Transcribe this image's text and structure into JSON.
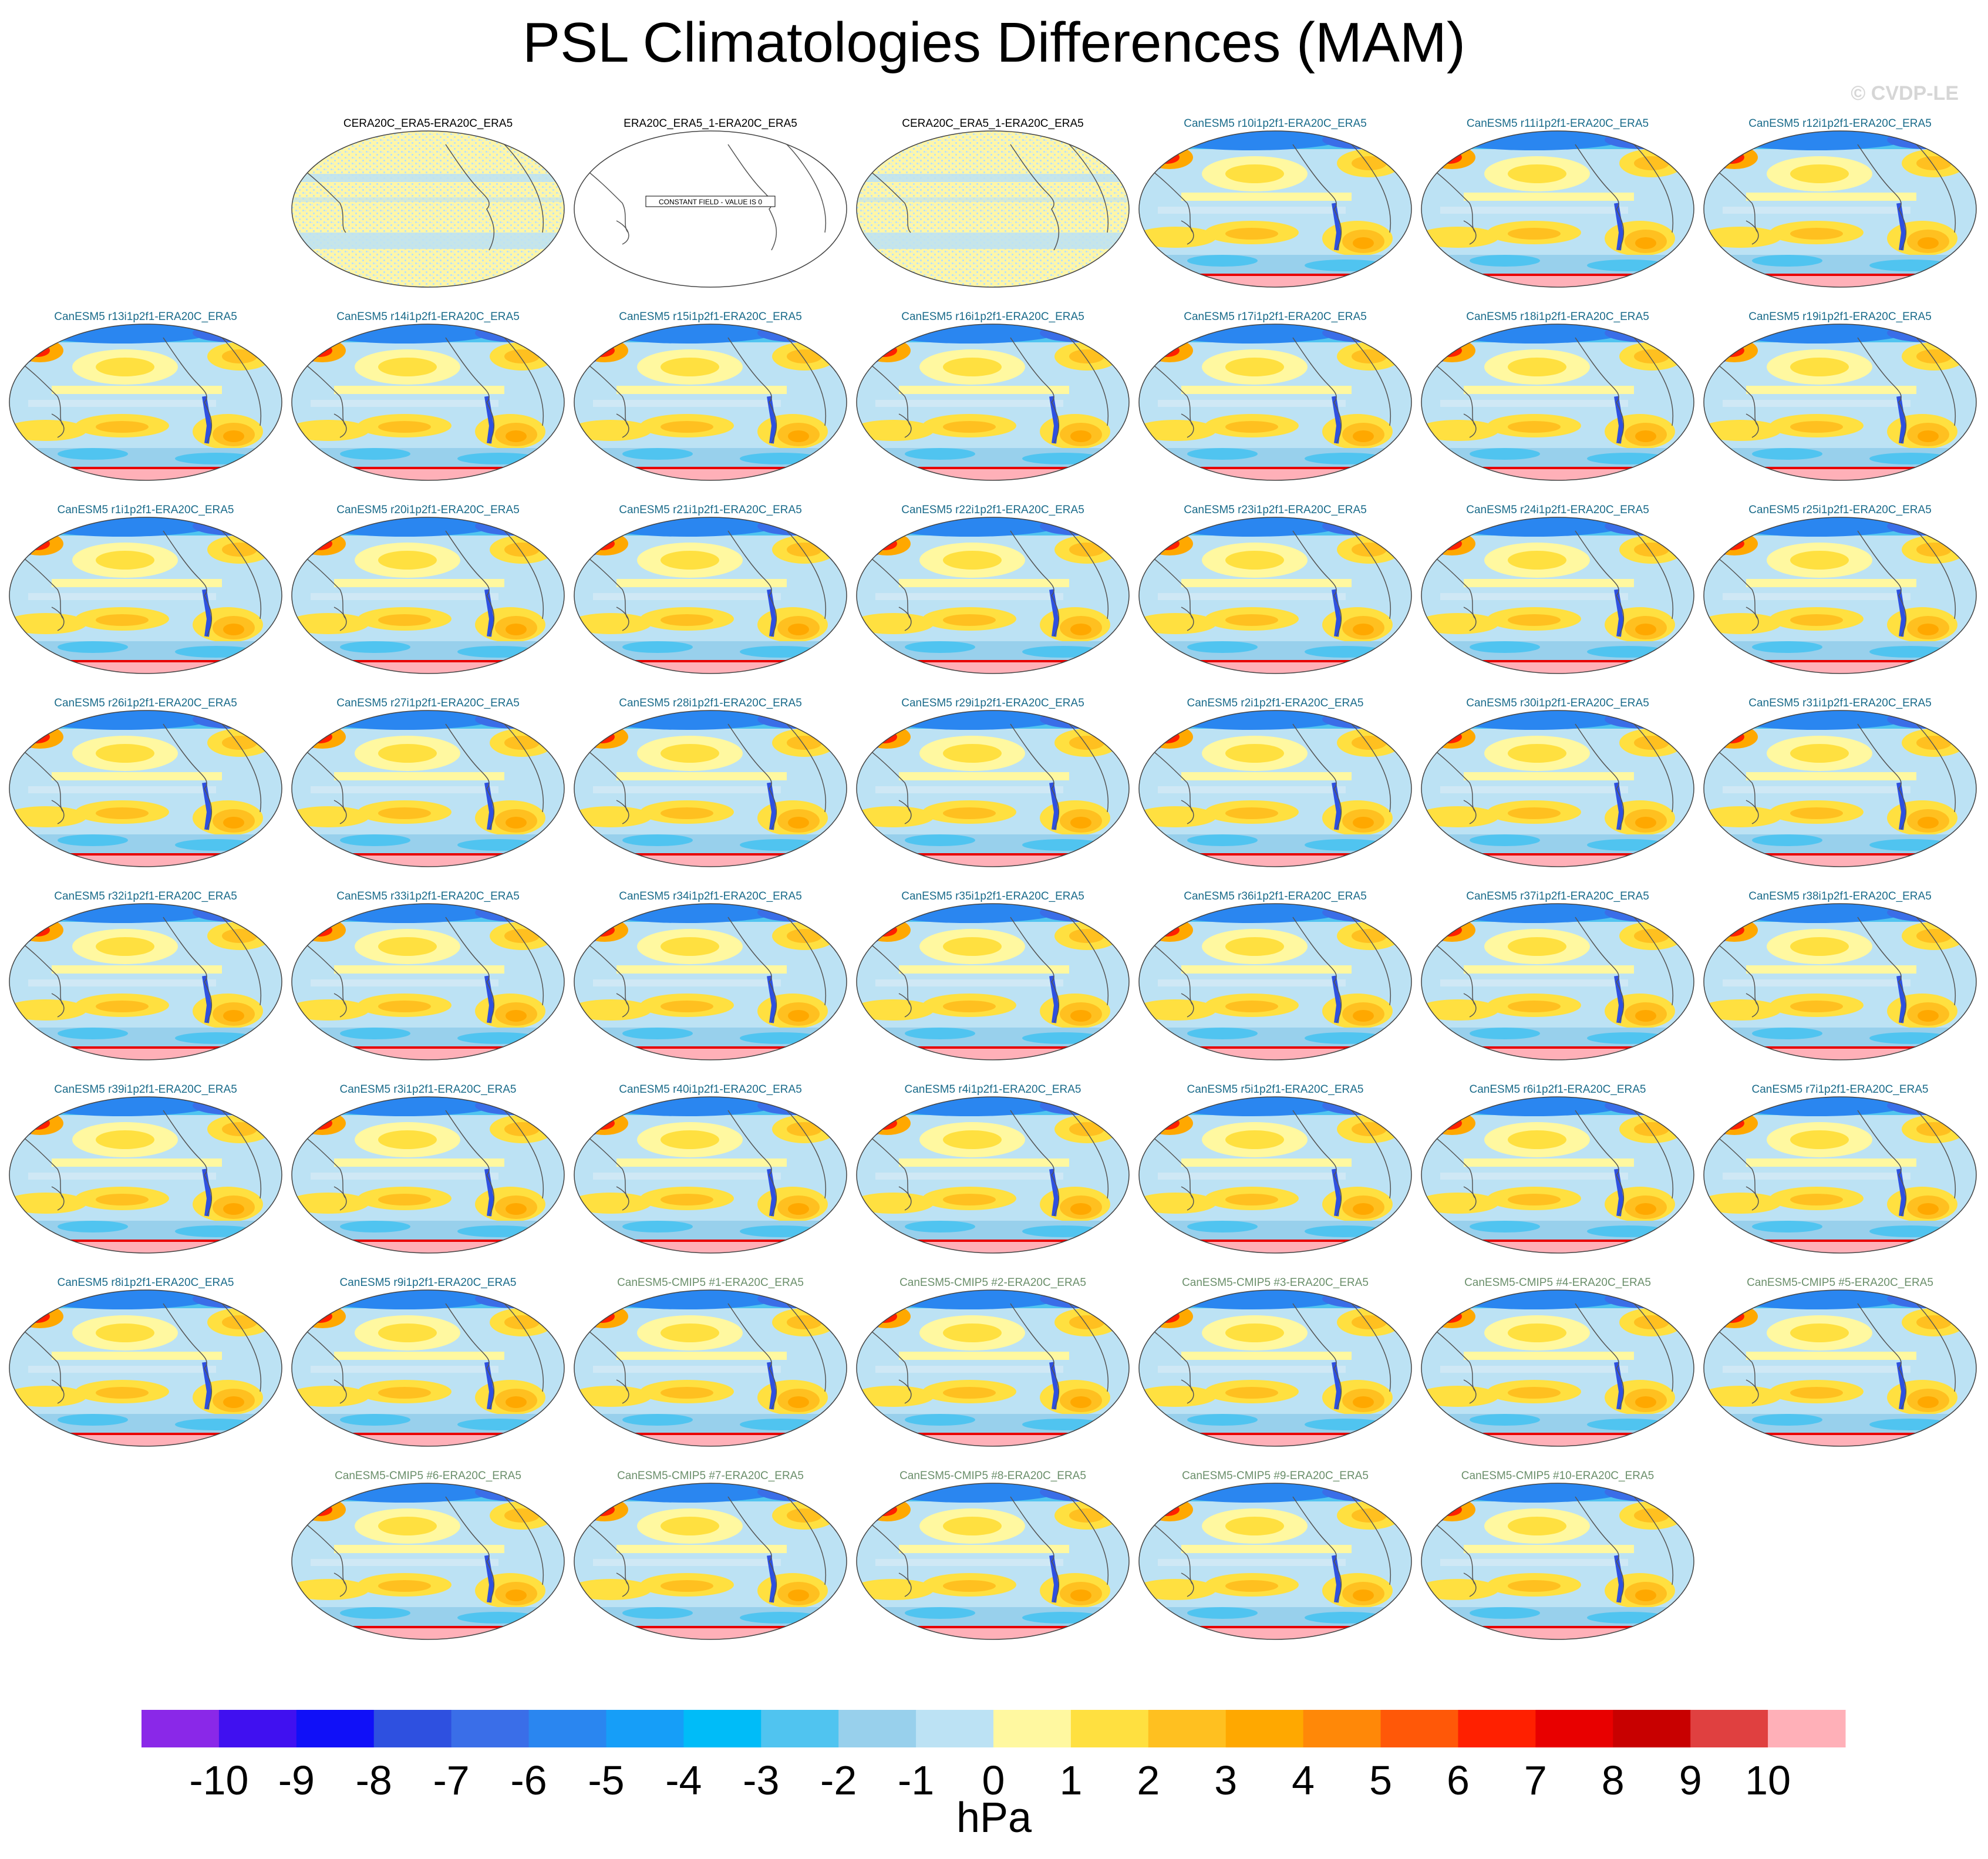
{
  "title": "PSL Climatologies Differences (MAM)",
  "watermark": "© CVDP-LE",
  "units": "hPa",
  "colors": {
    "title_black": "#000000",
    "title_teal": "#1a6b8a",
    "title_green": "#6b8f6b",
    "land_outline": "#555555",
    "rim": "#ffb0b8"
  },
  "chart_data": {
    "type": "heatmap",
    "title": "PSL Climatologies Differences (MAM)",
    "colorbar": {
      "label": "hPa",
      "tick_labels": [
        "-10",
        "-9",
        "-8",
        "-7",
        "-6",
        "-5",
        "-4",
        "-3",
        "-2",
        "-1",
        "0",
        "1",
        "2",
        "3",
        "4",
        "5",
        "6",
        "7",
        "8",
        "9",
        "10"
      ],
      "colors": [
        "#8a28e8",
        "#4010f0",
        "#1010f8",
        "#2e50e0",
        "#3a6ee8",
        "#2a86f0",
        "#169ef8",
        "#00bcf8",
        "#50c4f0",
        "#98d0ec",
        "#bce2f4",
        "#fff8a0",
        "#ffe040",
        "#ffc020",
        "#ffa800",
        "#ff8808",
        "#ff5808",
        "#ff2000",
        "#e80000",
        "#c80000",
        "#e04040",
        "#ffb0b8"
      ]
    },
    "panels": [
      {
        "title": "CERA20C_ERA5-ERA20C_ERA5",
        "style": "black",
        "kind": "noise"
      },
      {
        "title": "ERA20C_ERA5_1-ERA20C_ERA5",
        "style": "black",
        "kind": "constant",
        "note": "CONSTANT FIELD - VALUE IS 0"
      },
      {
        "title": "CERA20C_ERA5_1-ERA20C_ERA5",
        "style": "black",
        "kind": "noise"
      },
      {
        "title": "CanESM5 r10i1p2f1-ERA20C_ERA5",
        "style": "teal",
        "kind": "field"
      },
      {
        "title": "CanESM5 r11i1p2f1-ERA20C_ERA5",
        "style": "teal",
        "kind": "field"
      },
      {
        "title": "CanESM5 r12i1p2f1-ERA20C_ERA5",
        "style": "teal",
        "kind": "field"
      },
      {
        "title": "CanESM5 r13i1p2f1-ERA20C_ERA5",
        "style": "teal",
        "kind": "field"
      },
      {
        "title": "CanESM5 r14i1p2f1-ERA20C_ERA5",
        "style": "teal",
        "kind": "field"
      },
      {
        "title": "CanESM5 r15i1p2f1-ERA20C_ERA5",
        "style": "teal",
        "kind": "field"
      },
      {
        "title": "CanESM5 r16i1p2f1-ERA20C_ERA5",
        "style": "teal",
        "kind": "field"
      },
      {
        "title": "CanESM5 r17i1p2f1-ERA20C_ERA5",
        "style": "teal",
        "kind": "field"
      },
      {
        "title": "CanESM5 r18i1p2f1-ERA20C_ERA5",
        "style": "teal",
        "kind": "field"
      },
      {
        "title": "CanESM5 r19i1p2f1-ERA20C_ERA5",
        "style": "teal",
        "kind": "field"
      },
      {
        "title": "CanESM5 r1i1p2f1-ERA20C_ERA5",
        "style": "teal",
        "kind": "field"
      },
      {
        "title": "CanESM5 r20i1p2f1-ERA20C_ERA5",
        "style": "teal",
        "kind": "field"
      },
      {
        "title": "CanESM5 r21i1p2f1-ERA20C_ERA5",
        "style": "teal",
        "kind": "field"
      },
      {
        "title": "CanESM5 r22i1p2f1-ERA20C_ERA5",
        "style": "teal",
        "kind": "field"
      },
      {
        "title": "CanESM5 r23i1p2f1-ERA20C_ERA5",
        "style": "teal",
        "kind": "field"
      },
      {
        "title": "CanESM5 r24i1p2f1-ERA20C_ERA5",
        "style": "teal",
        "kind": "field"
      },
      {
        "title": "CanESM5 r25i1p2f1-ERA20C_ERA5",
        "style": "teal",
        "kind": "field"
      },
      {
        "title": "CanESM5 r26i1p2f1-ERA20C_ERA5",
        "style": "teal",
        "kind": "field"
      },
      {
        "title": "CanESM5 r27i1p2f1-ERA20C_ERA5",
        "style": "teal",
        "kind": "field"
      },
      {
        "title": "CanESM5 r28i1p2f1-ERA20C_ERA5",
        "style": "teal",
        "kind": "field"
      },
      {
        "title": "CanESM5 r29i1p2f1-ERA20C_ERA5",
        "style": "teal",
        "kind": "field"
      },
      {
        "title": "CanESM5 r2i1p2f1-ERA20C_ERA5",
        "style": "teal",
        "kind": "field"
      },
      {
        "title": "CanESM5 r30i1p2f1-ERA20C_ERA5",
        "style": "teal",
        "kind": "field"
      },
      {
        "title": "CanESM5 r31i1p2f1-ERA20C_ERA5",
        "style": "teal",
        "kind": "field"
      },
      {
        "title": "CanESM5 r32i1p2f1-ERA20C_ERA5",
        "style": "teal",
        "kind": "field"
      },
      {
        "title": "CanESM5 r33i1p2f1-ERA20C_ERA5",
        "style": "teal",
        "kind": "field"
      },
      {
        "title": "CanESM5 r34i1p2f1-ERA20C_ERA5",
        "style": "teal",
        "kind": "field"
      },
      {
        "title": "CanESM5 r35i1p2f1-ERA20C_ERA5",
        "style": "teal",
        "kind": "field"
      },
      {
        "title": "CanESM5 r36i1p2f1-ERA20C_ERA5",
        "style": "teal",
        "kind": "field"
      },
      {
        "title": "CanESM5 r37i1p2f1-ERA20C_ERA5",
        "style": "teal",
        "kind": "field"
      },
      {
        "title": "CanESM5 r38i1p2f1-ERA20C_ERA5",
        "style": "teal",
        "kind": "field"
      },
      {
        "title": "CanESM5 r39i1p2f1-ERA20C_ERA5",
        "style": "teal",
        "kind": "field"
      },
      {
        "title": "CanESM5 r3i1p2f1-ERA20C_ERA5",
        "style": "teal",
        "kind": "field"
      },
      {
        "title": "CanESM5 r40i1p2f1-ERA20C_ERA5",
        "style": "teal",
        "kind": "field"
      },
      {
        "title": "CanESM5 r4i1p2f1-ERA20C_ERA5",
        "style": "teal",
        "kind": "field"
      },
      {
        "title": "CanESM5 r5i1p2f1-ERA20C_ERA5",
        "style": "teal",
        "kind": "field"
      },
      {
        "title": "CanESM5 r6i1p2f1-ERA20C_ERA5",
        "style": "teal",
        "kind": "field"
      },
      {
        "title": "CanESM5 r7i1p2f1-ERA20C_ERA5",
        "style": "teal",
        "kind": "field"
      },
      {
        "title": "CanESM5 r8i1p2f1-ERA20C_ERA5",
        "style": "teal",
        "kind": "field"
      },
      {
        "title": "CanESM5 r9i1p2f1-ERA20C_ERA5",
        "style": "teal",
        "kind": "field"
      },
      {
        "title": "CanESM5-CMIP5 #1-ERA20C_ERA5",
        "style": "green",
        "kind": "field"
      },
      {
        "title": "CanESM5-CMIP5 #2-ERA20C_ERA5",
        "style": "green",
        "kind": "field"
      },
      {
        "title": "CanESM5-CMIP5 #3-ERA20C_ERA5",
        "style": "green",
        "kind": "field"
      },
      {
        "title": "CanESM5-CMIP5 #4-ERA20C_ERA5",
        "style": "green",
        "kind": "field"
      },
      {
        "title": "CanESM5-CMIP5 #5-ERA20C_ERA5",
        "style": "green",
        "kind": "field"
      },
      {
        "title": "CanESM5-CMIP5 #6-ERA20C_ERA5",
        "style": "green",
        "kind": "field"
      },
      {
        "title": "CanESM5-CMIP5 #7-ERA20C_ERA5",
        "style": "green",
        "kind": "field"
      },
      {
        "title": "CanESM5-CMIP5 #8-ERA20C_ERA5",
        "style": "green",
        "kind": "field"
      },
      {
        "title": "CanESM5-CMIP5 #9-ERA20C_ERA5",
        "style": "green",
        "kind": "field"
      },
      {
        "title": "CanESM5-CMIP5 #10-ERA20C_ERA5",
        "style": "green",
        "kind": "field"
      }
    ]
  }
}
